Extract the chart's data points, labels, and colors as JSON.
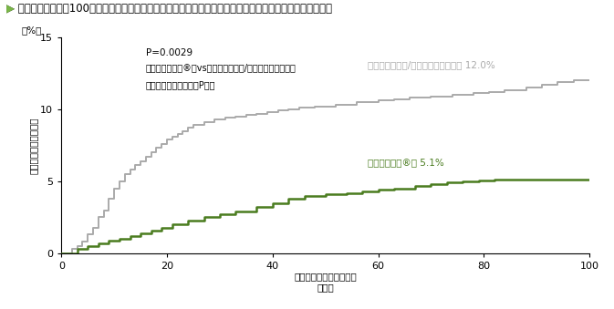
{
  "title": "無作為割付けから100日後までの侵襲性真菌症の発症までの期間（全無作為化例）（重要な副次評価項目）",
  "xlabel": "無作為割付けからの期間",
  "xlabel_unit": "（日）",
  "ylabel_chars": [
    "侵",
    "襲",
    "性",
    "真",
    "菌",
    "症",
    "の",
    "発",
    "症",
    "率"
  ],
  "ylabel_unit": "（%）",
  "xmin": 0,
  "xmax": 100,
  "ymin": 0,
  "ymax": 15,
  "xticks": [
    0,
    20,
    40,
    60,
    80,
    100
  ],
  "yticks": [
    0,
    5,
    10,
    15
  ],
  "pvalue_text": "P=0.0029",
  "pvalue_note1": "（ノクサフィル®群vsフルコナゾール/イトラコナゾール群",
  "pvalue_note2": "ログランク検定、両側P値）",
  "gray_label": "フルコナゾール/イトラコナゾール群 12.0%",
  "green_label": "ノクサフィル®群 5.1%",
  "gray_color": "#aaaaaa",
  "green_color": "#4a7c1f",
  "title_arrow_color": "#7ab648",
  "gray_x": [
    0,
    2,
    3,
    4,
    5,
    6,
    7,
    8,
    9,
    10,
    11,
    12,
    13,
    14,
    15,
    16,
    17,
    18,
    19,
    20,
    21,
    22,
    23,
    24,
    25,
    27,
    29,
    31,
    33,
    35,
    37,
    39,
    41,
    43,
    45,
    48,
    52,
    56,
    60,
    63,
    66,
    70,
    74,
    78,
    81,
    84,
    88,
    91,
    94,
    97,
    100
  ],
  "gray_y": [
    0,
    0.3,
    0.5,
    0.8,
    1.3,
    1.8,
    2.5,
    3.0,
    3.8,
    4.5,
    5.0,
    5.5,
    5.8,
    6.1,
    6.4,
    6.7,
    7.0,
    7.3,
    7.6,
    7.9,
    8.1,
    8.3,
    8.5,
    8.7,
    8.9,
    9.1,
    9.3,
    9.4,
    9.5,
    9.6,
    9.7,
    9.8,
    9.9,
    10.0,
    10.1,
    10.2,
    10.3,
    10.5,
    10.6,
    10.7,
    10.8,
    10.9,
    11.0,
    11.1,
    11.2,
    11.3,
    11.5,
    11.7,
    11.9,
    12.0,
    12.0
  ],
  "green_x": [
    0,
    3,
    5,
    7,
    9,
    11,
    13,
    15,
    17,
    19,
    21,
    24,
    27,
    30,
    33,
    37,
    40,
    43,
    46,
    50,
    54,
    57,
    60,
    63,
    67,
    70,
    73,
    76,
    79,
    82,
    85,
    88,
    91,
    94,
    97,
    100
  ],
  "green_y": [
    0,
    0.3,
    0.5,
    0.7,
    0.9,
    1.0,
    1.2,
    1.4,
    1.6,
    1.8,
    2.0,
    2.3,
    2.5,
    2.7,
    2.9,
    3.2,
    3.5,
    3.8,
    4.0,
    4.1,
    4.2,
    4.3,
    4.4,
    4.5,
    4.7,
    4.8,
    4.9,
    5.0,
    5.05,
    5.1,
    5.1,
    5.1,
    5.1,
    5.1,
    5.1,
    5.1
  ],
  "background_color": "#ffffff",
  "font_size_title": 8.5,
  "font_size_label": 7.5,
  "font_size_tick": 8,
  "font_size_annot": 7.5
}
